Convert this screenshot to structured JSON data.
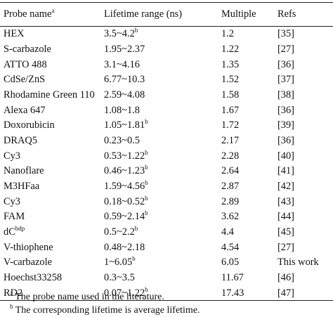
{
  "header": {
    "probe_name": "Probe name",
    "probe_name_sup": "a",
    "lifetime_range": "Lifetime range (ns)",
    "multiple": "Multiple",
    "refs": "Refs"
  },
  "rows": [
    {
      "probe": "HEX",
      "probe_sup": "",
      "range": "3.5~4.2",
      "range_sup": "b",
      "multiple": "1.2",
      "ref": "[35]"
    },
    {
      "probe": "S-carbazole",
      "probe_sup": "",
      "range": "1.95~2.37",
      "range_sup": "",
      "multiple": "1.22",
      "ref": "[27]"
    },
    {
      "probe": "ATTO 488",
      "probe_sup": "",
      "range": "3.1~4.16",
      "range_sup": "",
      "multiple": "1.35",
      "ref": "[36]"
    },
    {
      "probe": "CdSe/ZnS",
      "probe_sup": "",
      "range": "6.77~10.3",
      "range_sup": "",
      "multiple": "1.52",
      "ref": "[37]"
    },
    {
      "probe": "Rhodamine Green 110",
      "probe_sup": "",
      "range": "2.59~4.08",
      "range_sup": "",
      "multiple": "1.58",
      "ref": "[38]"
    },
    {
      "probe": "Alexa 647",
      "probe_sup": "",
      "range": "1.08~1.8",
      "range_sup": "",
      "multiple": "1.67",
      "ref": "[36]"
    },
    {
      "probe": "Doxorubicin",
      "probe_sup": "",
      "range": "1.05~1.81",
      "range_sup": "b",
      "multiple": "1.72",
      "ref": "[39]"
    },
    {
      "probe": "DRAQ5",
      "probe_sup": "",
      "range": "0.23~0.5",
      "range_sup": "",
      "multiple": "2.17",
      "ref": "[36]"
    },
    {
      "probe": "Cy3",
      "probe_sup": "",
      "range": "0.53~1.22",
      "range_sup": "b",
      "multiple": "2.28",
      "ref": "[40]"
    },
    {
      "probe": "Nanoflare",
      "probe_sup": "",
      "range": "0.46~1.23",
      "range_sup": "b",
      "multiple": "2.64",
      "ref": "[41]"
    },
    {
      "probe": "M3HFaa",
      "probe_sup": "",
      "range": "1.59~4.56",
      "range_sup": "b",
      "multiple": "2.87",
      "ref": "[42]"
    },
    {
      "probe": "Cy3",
      "probe_sup": "",
      "range": "0.18~0.52",
      "range_sup": "b",
      "multiple": "2.89",
      "ref": "[43]"
    },
    {
      "probe": "FAM",
      "probe_sup": "",
      "range": "0.59~2.14",
      "range_sup": "b",
      "multiple": "3.62",
      "ref": "[44]"
    },
    {
      "probe": "dC",
      "probe_sup": "bdp",
      "range": "0.5~2.2",
      "range_sup": "b",
      "multiple": "4.4",
      "ref": "[45]"
    },
    {
      "probe": "V-thiophene",
      "probe_sup": "",
      "range": "0.48~2.18",
      "range_sup": "",
      "multiple": "4.54",
      "ref": "[27]"
    },
    {
      "probe": "V-carbazole",
      "probe_sup": "",
      "range": "1~6.05",
      "range_sup": "b",
      "multiple": "6.05",
      "ref": "This work"
    },
    {
      "probe": "Hoechst33258",
      "probe_sup": "",
      "range": "0.3~3.5",
      "range_sup": "",
      "multiple": "11.67",
      "ref": "[46]"
    },
    {
      "probe": "RD2",
      "probe_sup": "",
      "range": "0.07~1.22",
      "range_sup": "b",
      "multiple": "17.43",
      "ref": "[47]"
    }
  ],
  "footnotes": {
    "a_mark": "a",
    "a_text": " The probe name used in the literature.",
    "b_mark": "b",
    "b_text": " The corresponding lifetime is average lifetime."
  }
}
